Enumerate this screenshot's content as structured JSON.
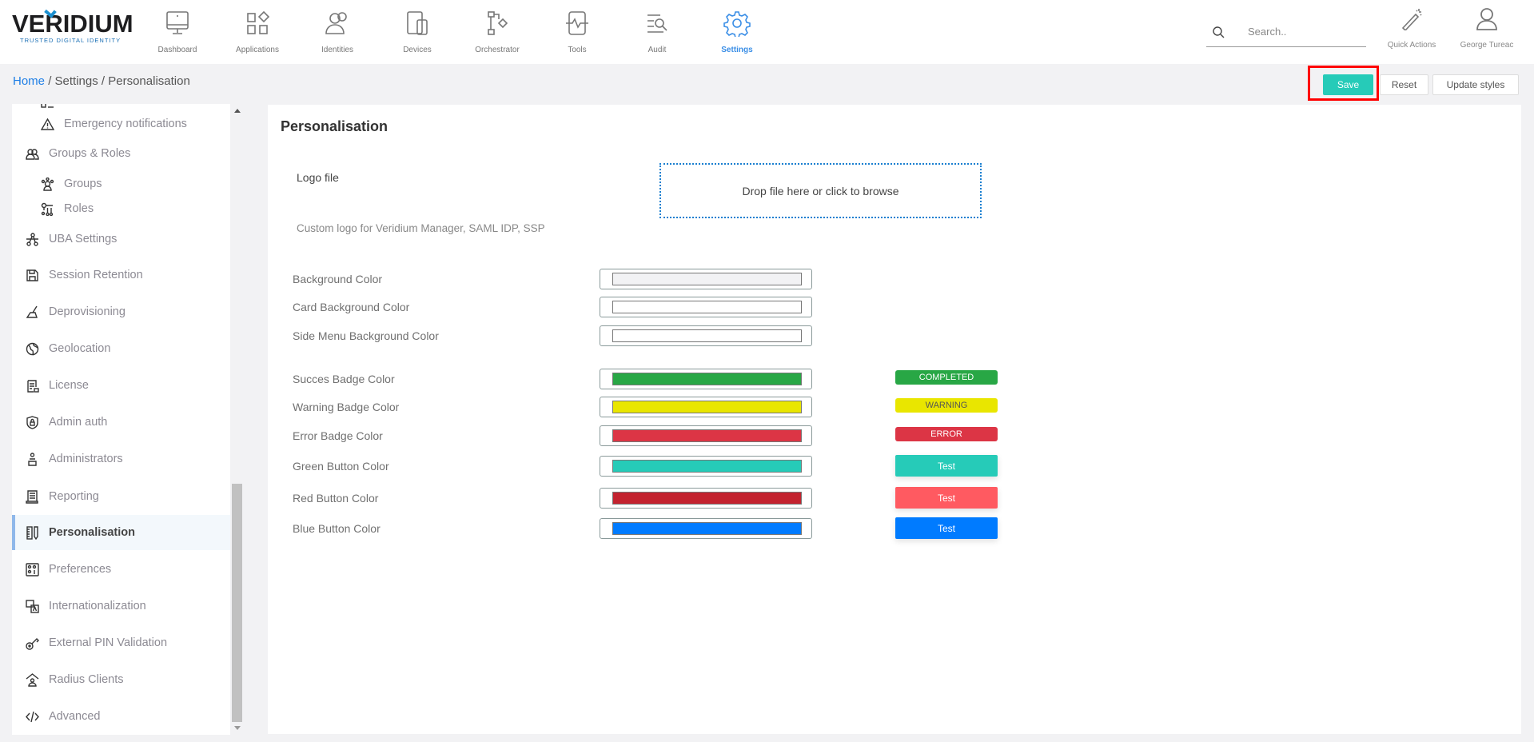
{
  "brand": {
    "name": "VERIDIUM",
    "tagline": "TRUSTED DIGITAL IDENTITY"
  },
  "nav": [
    {
      "label": "Dashboard",
      "icon": "monitor-icon"
    },
    {
      "label": "Applications",
      "icon": "apps-icon"
    },
    {
      "label": "Identities",
      "icon": "users-icon"
    },
    {
      "label": "Devices",
      "icon": "devices-icon"
    },
    {
      "label": "Orchestrator",
      "icon": "flow-icon"
    },
    {
      "label": "Tools",
      "icon": "tools-icon"
    },
    {
      "label": "Audit",
      "icon": "audit-icon"
    },
    {
      "label": "Settings",
      "icon": "gear-icon",
      "active": true
    }
  ],
  "search": {
    "placeholder": "Search.."
  },
  "quick_actions": "Quick Actions",
  "user": "George Tureac",
  "breadcrumb": {
    "home": "Home",
    "settings": "Settings",
    "current": "Personalisation"
  },
  "actions": {
    "save": "Save",
    "reset": "Reset",
    "update": "Update styles"
  },
  "sidebar": [
    {
      "label": "Emergency notifications",
      "sub": true,
      "icon": "warning-icon"
    },
    {
      "label": "Groups & Roles",
      "icon": "groups-roles-icon"
    },
    {
      "label": "Groups",
      "sub": true,
      "icon": "groups-icon"
    },
    {
      "label": "Roles",
      "sub": true,
      "icon": "roles-icon"
    },
    {
      "label": "UBA Settings",
      "icon": "network-icon"
    },
    {
      "label": "Session Retention",
      "icon": "save-disk-icon"
    },
    {
      "label": "Deprovisioning",
      "icon": "broom-icon"
    },
    {
      "label": "Geolocation",
      "icon": "globe-icon"
    },
    {
      "label": "License",
      "icon": "license-icon"
    },
    {
      "label": "Admin auth",
      "icon": "shield-lock-icon"
    },
    {
      "label": "Administrators",
      "icon": "admin-icon"
    },
    {
      "label": "Reporting",
      "icon": "report-icon"
    },
    {
      "label": "Personalisation",
      "icon": "ruler-pencil-icon",
      "active": true
    },
    {
      "label": "Preferences",
      "icon": "preferences-icon"
    },
    {
      "label": "Internationalization",
      "icon": "translate-icon"
    },
    {
      "label": "External PIN Validation",
      "icon": "key-icon"
    },
    {
      "label": "Radius Clients",
      "icon": "radius-icon"
    },
    {
      "label": "Advanced",
      "icon": "code-icon"
    }
  ],
  "main": {
    "title": "Personalisation",
    "logo_label": "Logo file",
    "logo_help": "Custom logo for Veridium Manager, SAML IDP, SSP",
    "dropzone": "Drop file here or click to browse",
    "colors": [
      {
        "label": "Background Color",
        "value": "#f2f2f4"
      },
      {
        "label": "Card Background Color",
        "value": "#ffffff"
      },
      {
        "label": "Side Menu Background Color",
        "value": "#ffffff"
      },
      {
        "label": "Succes Badge Color",
        "value": "#28a745",
        "preview": "badge",
        "preview_label": "COMPLETED"
      },
      {
        "label": "Warning Badge Color",
        "value": "#e9e600",
        "preview": "badge",
        "preview_label": "WARNING",
        "preview_text": "#555"
      },
      {
        "label": "Error Badge Color",
        "value": "#dc3545",
        "preview": "badge",
        "preview_label": "ERROR"
      },
      {
        "label": "Green Button Color",
        "value": "#26cbb8",
        "preview": "button",
        "preview_label": "Test"
      },
      {
        "label": "Red Button Color",
        "value": "#c3232f",
        "preview": "button",
        "preview_label": "Test",
        "preview_color": "#ff5a61"
      },
      {
        "label": "Blue Button Color",
        "value": "#007bff",
        "preview": "button",
        "preview_label": "Test"
      }
    ]
  },
  "colors": {
    "accent": "#26cbb8",
    "link": "#1f7fe6",
    "highlight": "#ff0000"
  }
}
